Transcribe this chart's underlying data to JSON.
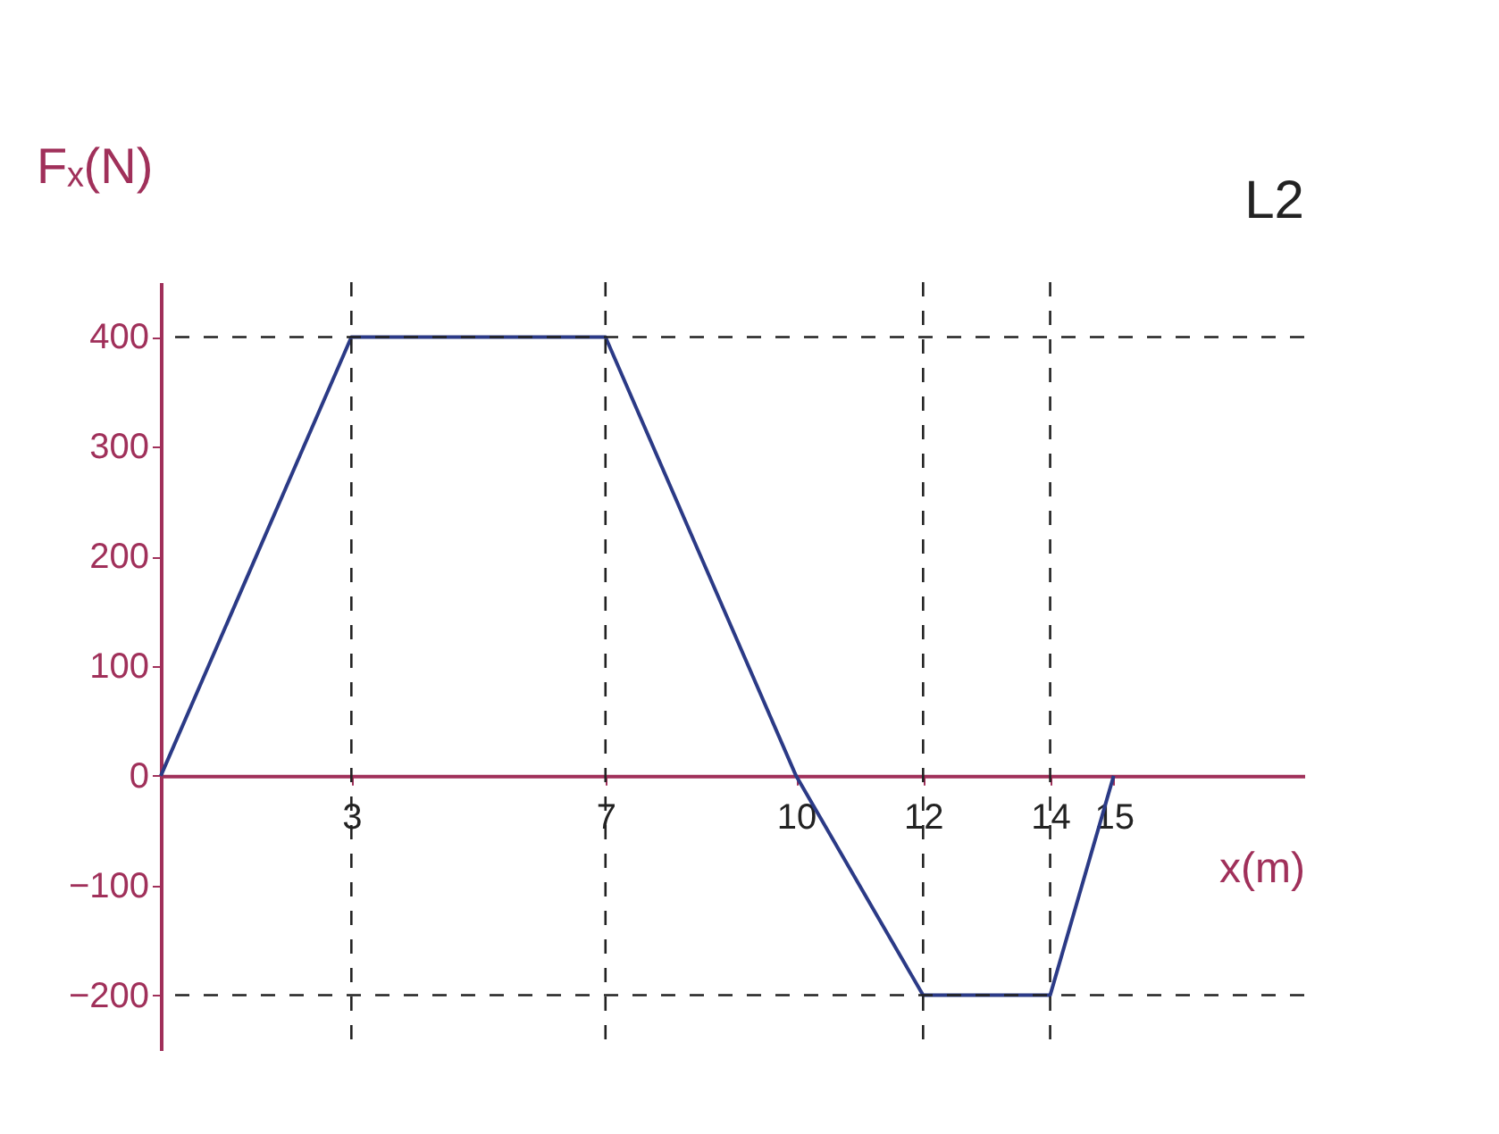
{
  "chart_data": {
    "type": "line",
    "xlabel": "x(m)",
    "ylabel": "Fₓ(N)",
    "annotations": [
      "L2"
    ],
    "x": [
      0,
      3,
      7,
      10,
      12,
      14,
      15
    ],
    "series": [
      {
        "color": "#2b3a86",
        "values": [
          0,
          400,
          400,
          0,
          -200,
          -200,
          0
        ]
      }
    ],
    "xlim": [
      0,
      18
    ],
    "xticks": [
      3,
      7,
      10,
      12,
      14,
      15
    ],
    "ylim": [
      -250,
      450
    ],
    "yticks": [
      -200,
      -100,
      0,
      100,
      200,
      300,
      400
    ],
    "ref_lines": [
      {
        "axis": "x",
        "value": 3,
        "line_style": "dashed",
        "color": "#222222"
      },
      {
        "axis": "x",
        "value": 7,
        "line_style": "dashed",
        "color": "#222222"
      },
      {
        "axis": "x",
        "value": 12,
        "line_style": "dashed",
        "color": "#222222"
      },
      {
        "axis": "x",
        "value": 14,
        "line_style": "dashed",
        "color": "#222222"
      },
      {
        "axis": "y",
        "value": 400,
        "line_style": "dashed",
        "color": "#222222"
      },
      {
        "axis": "y",
        "value": -200,
        "line_style": "dashed",
        "color": "#222222"
      }
    ],
    "marker": "none",
    "line_style": "solid",
    "grid": false
  }
}
